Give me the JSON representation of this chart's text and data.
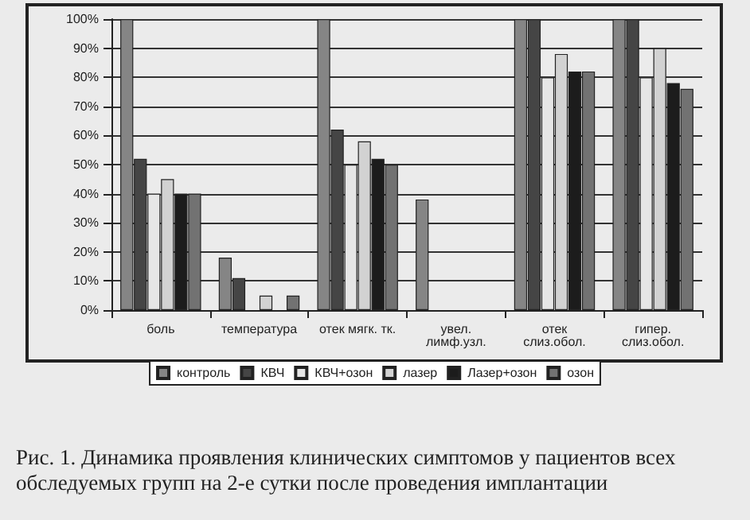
{
  "chart_data": {
    "type": "bar",
    "categories": [
      "боль",
      "температура",
      "отек мягк. тк.",
      "увел.\nлимф.узл.",
      "отек\nслиз.обол.",
      "гипер.\nслиз.обол."
    ],
    "series": [
      {
        "name": "контроль",
        "color": "#858585",
        "values": [
          100,
          18,
          100,
          38,
          100,
          100
        ]
      },
      {
        "name": "КВЧ",
        "color": "#454545",
        "values": [
          52,
          11,
          62,
          0,
          100,
          100
        ]
      },
      {
        "name": "КВЧ+озон",
        "color": "#e6e6e6",
        "values": [
          40,
          0,
          50,
          0,
          80,
          80
        ]
      },
      {
        "name": "лазер",
        "color": "#d2d2d2",
        "values": [
          45,
          5,
          58,
          0,
          88,
          90
        ]
      },
      {
        "name": "Лазер+озон",
        "color": "#1c1c1c",
        "values": [
          40,
          0,
          52,
          0,
          82,
          78
        ]
      },
      {
        "name": "озон",
        "color": "#727272",
        "values": [
          40,
          5,
          50,
          0,
          82,
          76
        ]
      }
    ],
    "ylim": [
      0,
      100
    ],
    "yticks": [
      {
        "value": 0,
        "label": "0%"
      },
      {
        "value": 10,
        "label": "10%"
      },
      {
        "value": 20,
        "label": "20%"
      },
      {
        "value": 30,
        "label": "30%"
      },
      {
        "value": 40,
        "label": "40%"
      },
      {
        "value": 50,
        "label": "50%"
      },
      {
        "value": 60,
        "label": "60%"
      },
      {
        "value": 70,
        "label": "70%"
      },
      {
        "value": 80,
        "label": "80%"
      },
      {
        "value": 90,
        "label": "90%"
      },
      {
        "value": 100,
        "label": "100%"
      }
    ],
    "grid": "y",
    "legend": "bottom",
    "annotations": [
      "Рис. 1. Динамика проявления клинических симптомов у пациентов всех обследуемых групп на 2-е сутки после проведения имплантации"
    ]
  }
}
